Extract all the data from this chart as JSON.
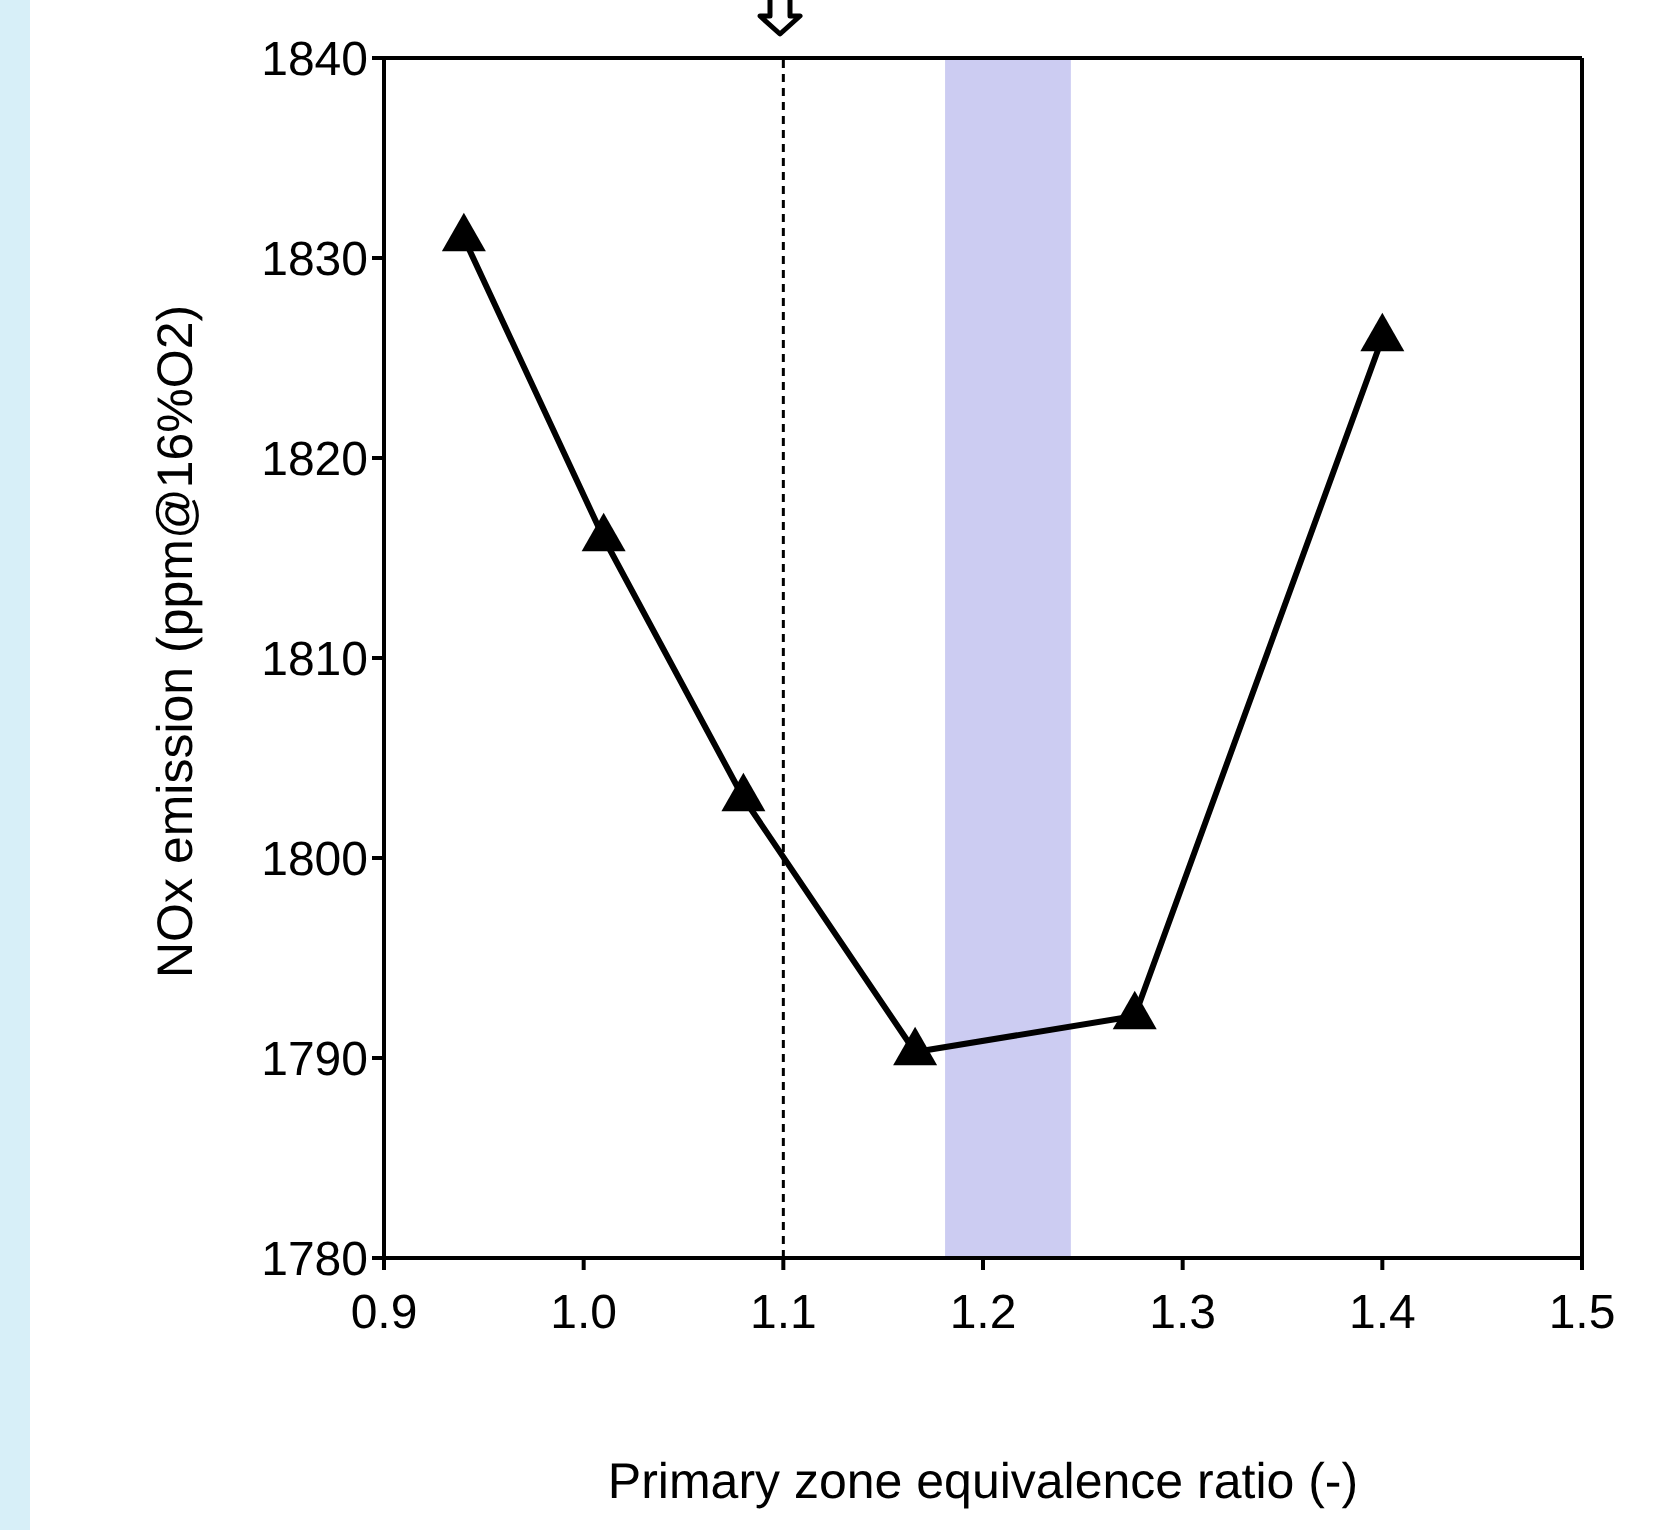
{
  "chart_data": {
    "type": "line",
    "xlabel": "Primary zone equivalence ratio (-)",
    "ylabel": "NOx emission (ppm@16%O2)",
    "x": [
      0.94,
      1.01,
      1.08,
      1.166,
      1.276,
      1.4
    ],
    "series": [
      {
        "color": "#000000",
        "values": [
          1831,
          1816,
          1803,
          1790.3,
          1792.1,
          1826
        ]
      }
    ],
    "xlim": [
      0.9,
      1.5
    ],
    "xticks": [
      {
        "value": 0.9,
        "label": "0.9"
      },
      {
        "value": 1.0,
        "label": "1.0"
      },
      {
        "value": 1.1,
        "label": "1.1"
      },
      {
        "value": 1.2,
        "label": "1.2"
      },
      {
        "value": 1.3,
        "label": "1.3"
      },
      {
        "value": 1.4,
        "label": "1.4"
      },
      {
        "value": 1.5,
        "label": "1.5"
      }
    ],
    "ylim": [
      1780,
      1840
    ],
    "yticks": [
      1780,
      1790,
      1800,
      1810,
      1820,
      1830,
      1840
    ],
    "ref_lines": [
      {
        "axis": "x",
        "value": 1.1,
        "color": "#000000",
        "line_style": "dashed"
      }
    ],
    "bands": [
      {
        "axis": "x",
        "from": 1.181,
        "to": 1.244,
        "color": "#ccccf2"
      }
    ],
    "marker": "triangle",
    "line_style": "solid",
    "grid": false
  }
}
